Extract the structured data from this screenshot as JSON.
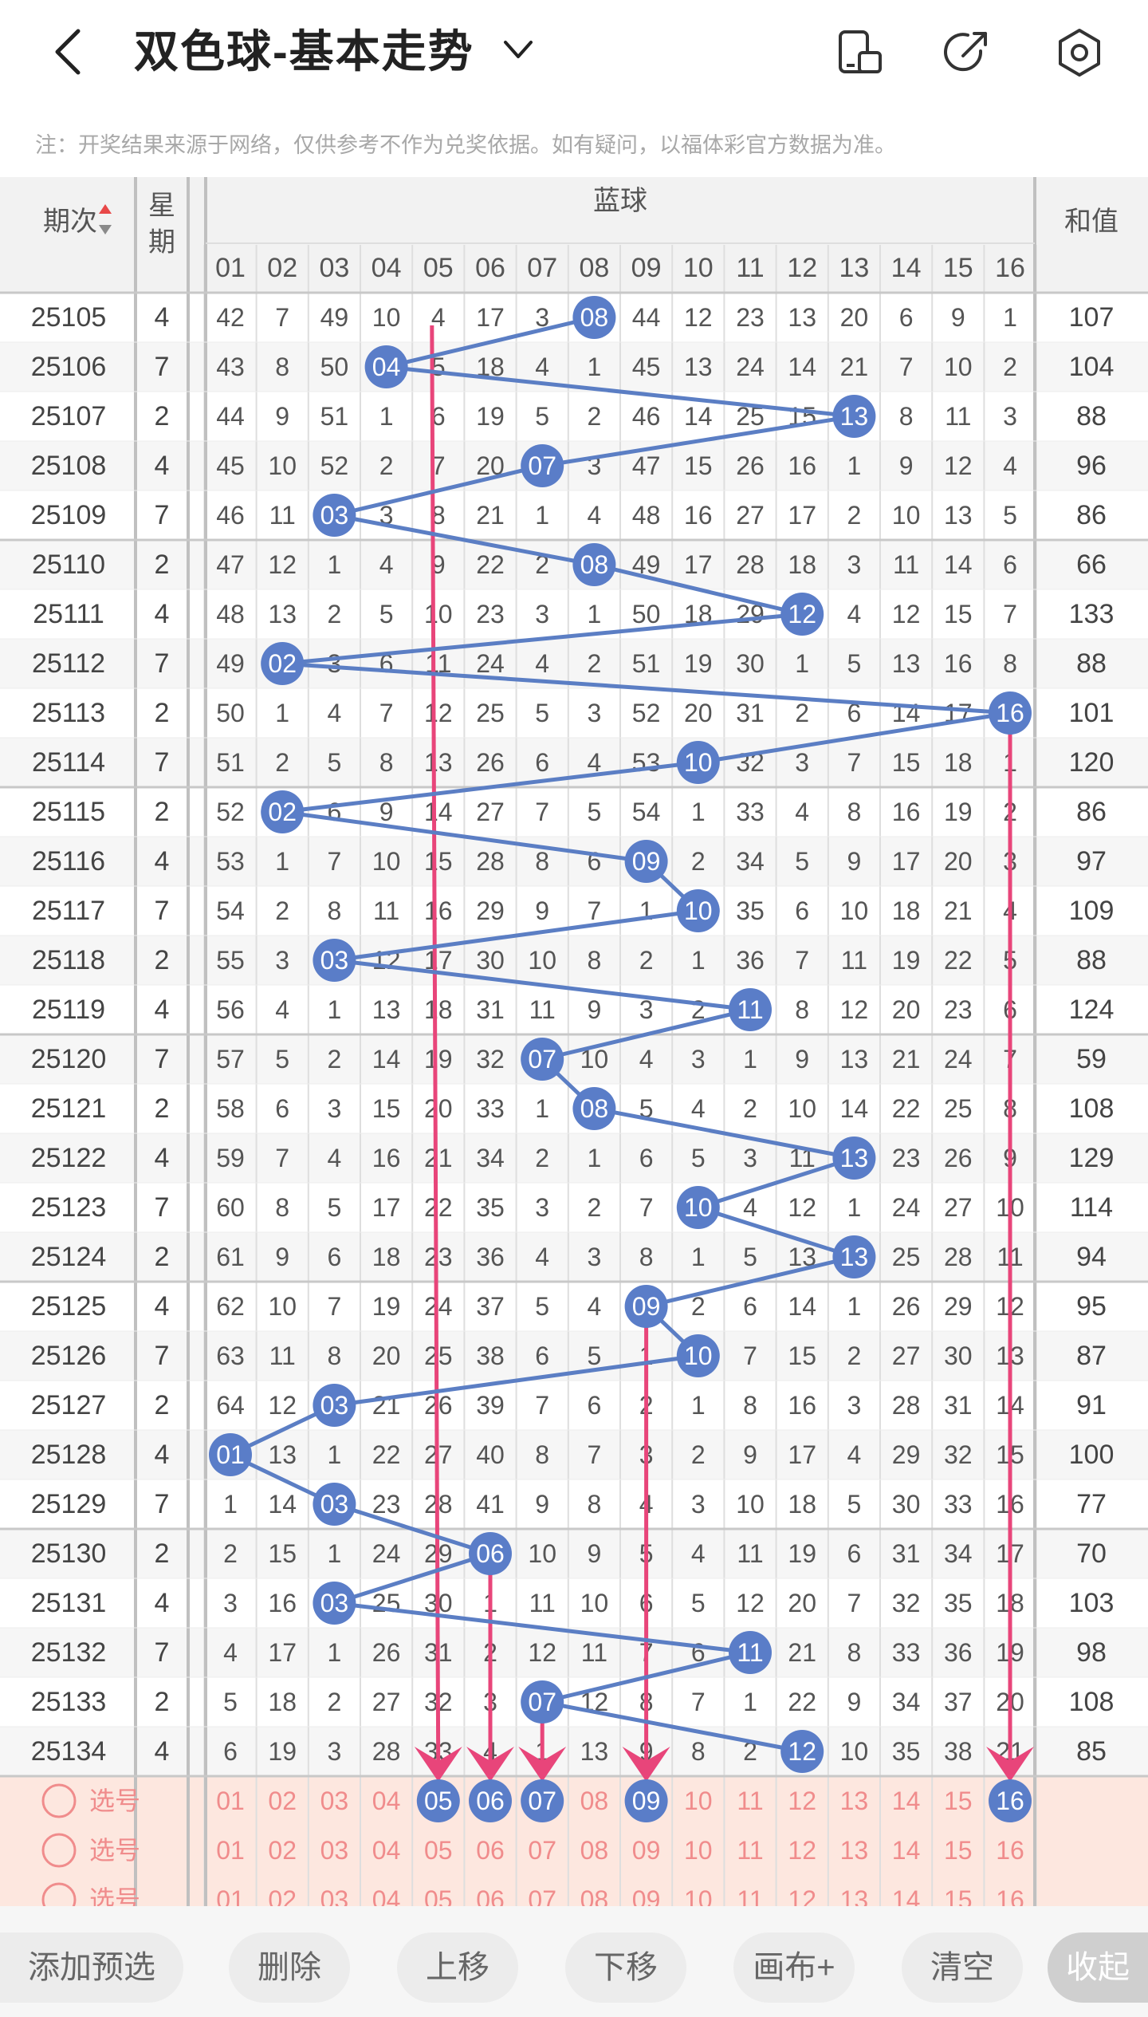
{
  "header": {
    "title": "双色球-基本走势",
    "icons": [
      "back-arrow-icon",
      "dropdown-chevron-icon",
      "phone-device-icon",
      "share-icon",
      "settings-icon"
    ]
  },
  "notice": "注：开奖结果来源于网络，仅供参考不作为兑奖依据。如有疑问，以福体彩官方数据为准。",
  "table": {
    "col_issue": "期次",
    "col_week_top": "星",
    "col_week_bottom": "期",
    "group_label": "蓝球",
    "col_sum": "和值",
    "numbers": [
      "01",
      "02",
      "03",
      "04",
      "05",
      "06",
      "07",
      "08",
      "09",
      "10",
      "11",
      "12",
      "13",
      "14",
      "15",
      "16"
    ],
    "rows": [
      {
        "issue": "25105",
        "week": "4",
        "cells": [
          42,
          7,
          49,
          10,
          4,
          17,
          3,
          "08",
          44,
          12,
          23,
          13,
          20,
          6,
          9,
          1
        ],
        "sum": "107"
      },
      {
        "issue": "25106",
        "week": "7",
        "cells": [
          43,
          8,
          50,
          "04",
          5,
          18,
          4,
          1,
          45,
          13,
          24,
          14,
          21,
          7,
          10,
          2
        ],
        "sum": "104"
      },
      {
        "issue": "25107",
        "week": "2",
        "cells": [
          44,
          9,
          51,
          1,
          6,
          19,
          5,
          2,
          46,
          14,
          25,
          15,
          "13",
          8,
          11,
          3
        ],
        "sum": "88"
      },
      {
        "issue": "25108",
        "week": "4",
        "cells": [
          45,
          10,
          52,
          2,
          7,
          20,
          "07",
          3,
          47,
          15,
          26,
          16,
          1,
          9,
          12,
          4
        ],
        "sum": "96"
      },
      {
        "issue": "25109",
        "week": "7",
        "cells": [
          46,
          11,
          "03",
          3,
          8,
          21,
          1,
          4,
          48,
          16,
          27,
          17,
          2,
          10,
          13,
          5
        ],
        "sum": "86"
      },
      {
        "issue": "25110",
        "week": "2",
        "cells": [
          47,
          12,
          1,
          4,
          9,
          22,
          2,
          "08",
          49,
          17,
          28,
          18,
          3,
          11,
          14,
          6
        ],
        "sum": "66"
      },
      {
        "issue": "25111",
        "week": "4",
        "cells": [
          48,
          13,
          2,
          5,
          10,
          23,
          3,
          1,
          50,
          18,
          29,
          "12",
          4,
          12,
          15,
          7
        ],
        "sum": "133"
      },
      {
        "issue": "25112",
        "week": "7",
        "cells": [
          49,
          "02",
          3,
          6,
          11,
          24,
          4,
          2,
          51,
          19,
          30,
          1,
          5,
          13,
          16,
          8
        ],
        "sum": "88"
      },
      {
        "issue": "25113",
        "week": "2",
        "cells": [
          50,
          1,
          4,
          7,
          12,
          25,
          5,
          3,
          52,
          20,
          31,
          2,
          6,
          14,
          17,
          "16"
        ],
        "sum": "101"
      },
      {
        "issue": "25114",
        "week": "7",
        "cells": [
          51,
          2,
          5,
          8,
          13,
          26,
          6,
          4,
          53,
          "10",
          32,
          3,
          7,
          15,
          18,
          1
        ],
        "sum": "120"
      },
      {
        "issue": "25115",
        "week": "2",
        "cells": [
          52,
          "02",
          6,
          9,
          14,
          27,
          7,
          5,
          54,
          1,
          33,
          4,
          8,
          16,
          19,
          2
        ],
        "sum": "86"
      },
      {
        "issue": "25116",
        "week": "4",
        "cells": [
          53,
          1,
          7,
          10,
          15,
          28,
          8,
          6,
          "09",
          2,
          34,
          5,
          9,
          17,
          20,
          3
        ],
        "sum": "97"
      },
      {
        "issue": "25117",
        "week": "7",
        "cells": [
          54,
          2,
          8,
          11,
          16,
          29,
          9,
          7,
          1,
          "10",
          35,
          6,
          10,
          18,
          21,
          4
        ],
        "sum": "109"
      },
      {
        "issue": "25118",
        "week": "2",
        "cells": [
          55,
          3,
          "03",
          12,
          17,
          30,
          10,
          8,
          2,
          1,
          36,
          7,
          11,
          19,
          22,
          5
        ],
        "sum": "88"
      },
      {
        "issue": "25119",
        "week": "4",
        "cells": [
          56,
          4,
          1,
          13,
          18,
          31,
          11,
          9,
          3,
          2,
          "11",
          8,
          12,
          20,
          23,
          6
        ],
        "sum": "124"
      },
      {
        "issue": "25120",
        "week": "7",
        "cells": [
          57,
          5,
          2,
          14,
          19,
          32,
          "07",
          10,
          4,
          3,
          1,
          9,
          13,
          21,
          24,
          7
        ],
        "sum": "59"
      },
      {
        "issue": "25121",
        "week": "2",
        "cells": [
          58,
          6,
          3,
          15,
          20,
          33,
          1,
          "08",
          5,
          4,
          2,
          10,
          14,
          22,
          25,
          8
        ],
        "sum": "108"
      },
      {
        "issue": "25122",
        "week": "4",
        "cells": [
          59,
          7,
          4,
          16,
          21,
          34,
          2,
          1,
          6,
          5,
          3,
          11,
          "13",
          23,
          26,
          9
        ],
        "sum": "129"
      },
      {
        "issue": "25123",
        "week": "7",
        "cells": [
          60,
          8,
          5,
          17,
          22,
          35,
          3,
          2,
          7,
          "10",
          4,
          12,
          1,
          24,
          27,
          10
        ],
        "sum": "114"
      },
      {
        "issue": "25124",
        "week": "2",
        "cells": [
          61,
          9,
          6,
          18,
          23,
          36,
          4,
          3,
          8,
          1,
          5,
          13,
          "13",
          25,
          28,
          11
        ],
        "sum": "94"
      },
      {
        "issue": "25125",
        "week": "4",
        "cells": [
          62,
          10,
          7,
          19,
          24,
          37,
          5,
          4,
          "09",
          2,
          6,
          14,
          1,
          26,
          29,
          12
        ],
        "sum": "95"
      },
      {
        "issue": "25126",
        "week": "7",
        "cells": [
          63,
          11,
          8,
          20,
          25,
          38,
          6,
          5,
          1,
          "10",
          7,
          15,
          2,
          27,
          30,
          13
        ],
        "sum": "87"
      },
      {
        "issue": "25127",
        "week": "2",
        "cells": [
          64,
          12,
          "03",
          21,
          26,
          39,
          7,
          6,
          2,
          1,
          8,
          16,
          3,
          28,
          31,
          14
        ],
        "sum": "91"
      },
      {
        "issue": "25128",
        "week": "4",
        "cells": [
          "01",
          13,
          1,
          22,
          27,
          40,
          8,
          7,
          3,
          2,
          9,
          17,
          4,
          29,
          32,
          15
        ],
        "sum": "100"
      },
      {
        "issue": "25129",
        "week": "7",
        "cells": [
          1,
          14,
          "03",
          23,
          28,
          41,
          9,
          8,
          4,
          3,
          10,
          18,
          5,
          30,
          33,
          16
        ],
        "sum": "77"
      },
      {
        "issue": "25130",
        "week": "2",
        "cells": [
          2,
          15,
          1,
          24,
          29,
          "06",
          10,
          9,
          5,
          4,
          11,
          19,
          6,
          31,
          34,
          17
        ],
        "sum": "70"
      },
      {
        "issue": "25131",
        "week": "4",
        "cells": [
          3,
          16,
          "03",
          25,
          30,
          1,
          11,
          10,
          6,
          5,
          12,
          20,
          7,
          32,
          35,
          18
        ],
        "sum": "103"
      },
      {
        "issue": "25132",
        "week": "7",
        "cells": [
          4,
          17,
          1,
          26,
          31,
          2,
          12,
          11,
          7,
          6,
          "11",
          21,
          8,
          33,
          36,
          19
        ],
        "sum": "98"
      },
      {
        "issue": "25133",
        "week": "2",
        "cells": [
          5,
          18,
          2,
          27,
          32,
          3,
          "07",
          12,
          8,
          7,
          1,
          22,
          9,
          34,
          37,
          20
        ],
        "sum": "108"
      },
      {
        "issue": "25134",
        "week": "4",
        "cells": [
          6,
          19,
          3,
          28,
          33,
          4,
          1,
          13,
          9,
          8,
          2,
          "12",
          10,
          35,
          38,
          21
        ],
        "sum": "85"
      }
    ],
    "hits": [
      8,
      4,
      13,
      7,
      3,
      8,
      12,
      2,
      16,
      10,
      2,
      9,
      10,
      3,
      11,
      7,
      8,
      13,
      10,
      13,
      9,
      10,
      3,
      1,
      3,
      6,
      3,
      11,
      7,
      12
    ],
    "select_label": "选号",
    "select_rows": [
      {
        "selected": [
          5,
          6,
          7,
          9,
          16
        ]
      },
      {
        "selected": []
      },
      {
        "selected": []
      }
    ],
    "pick_arrows": [
      5,
      6,
      7,
      9,
      16
    ]
  },
  "toolbar": {
    "add": "添加预选",
    "delete": "删除",
    "up": "上移",
    "down": "下移",
    "canvas": "画布+",
    "clear": "清空",
    "collapse": "收起"
  },
  "colors": {
    "ball": "#5a7dc8",
    "line": "#5b7ec4",
    "arrow": "#e8457a",
    "select_bg": "#fde7df",
    "select_text": "#f08c8c",
    "grid": "#dedede",
    "divider": "#c0c0c0"
  }
}
